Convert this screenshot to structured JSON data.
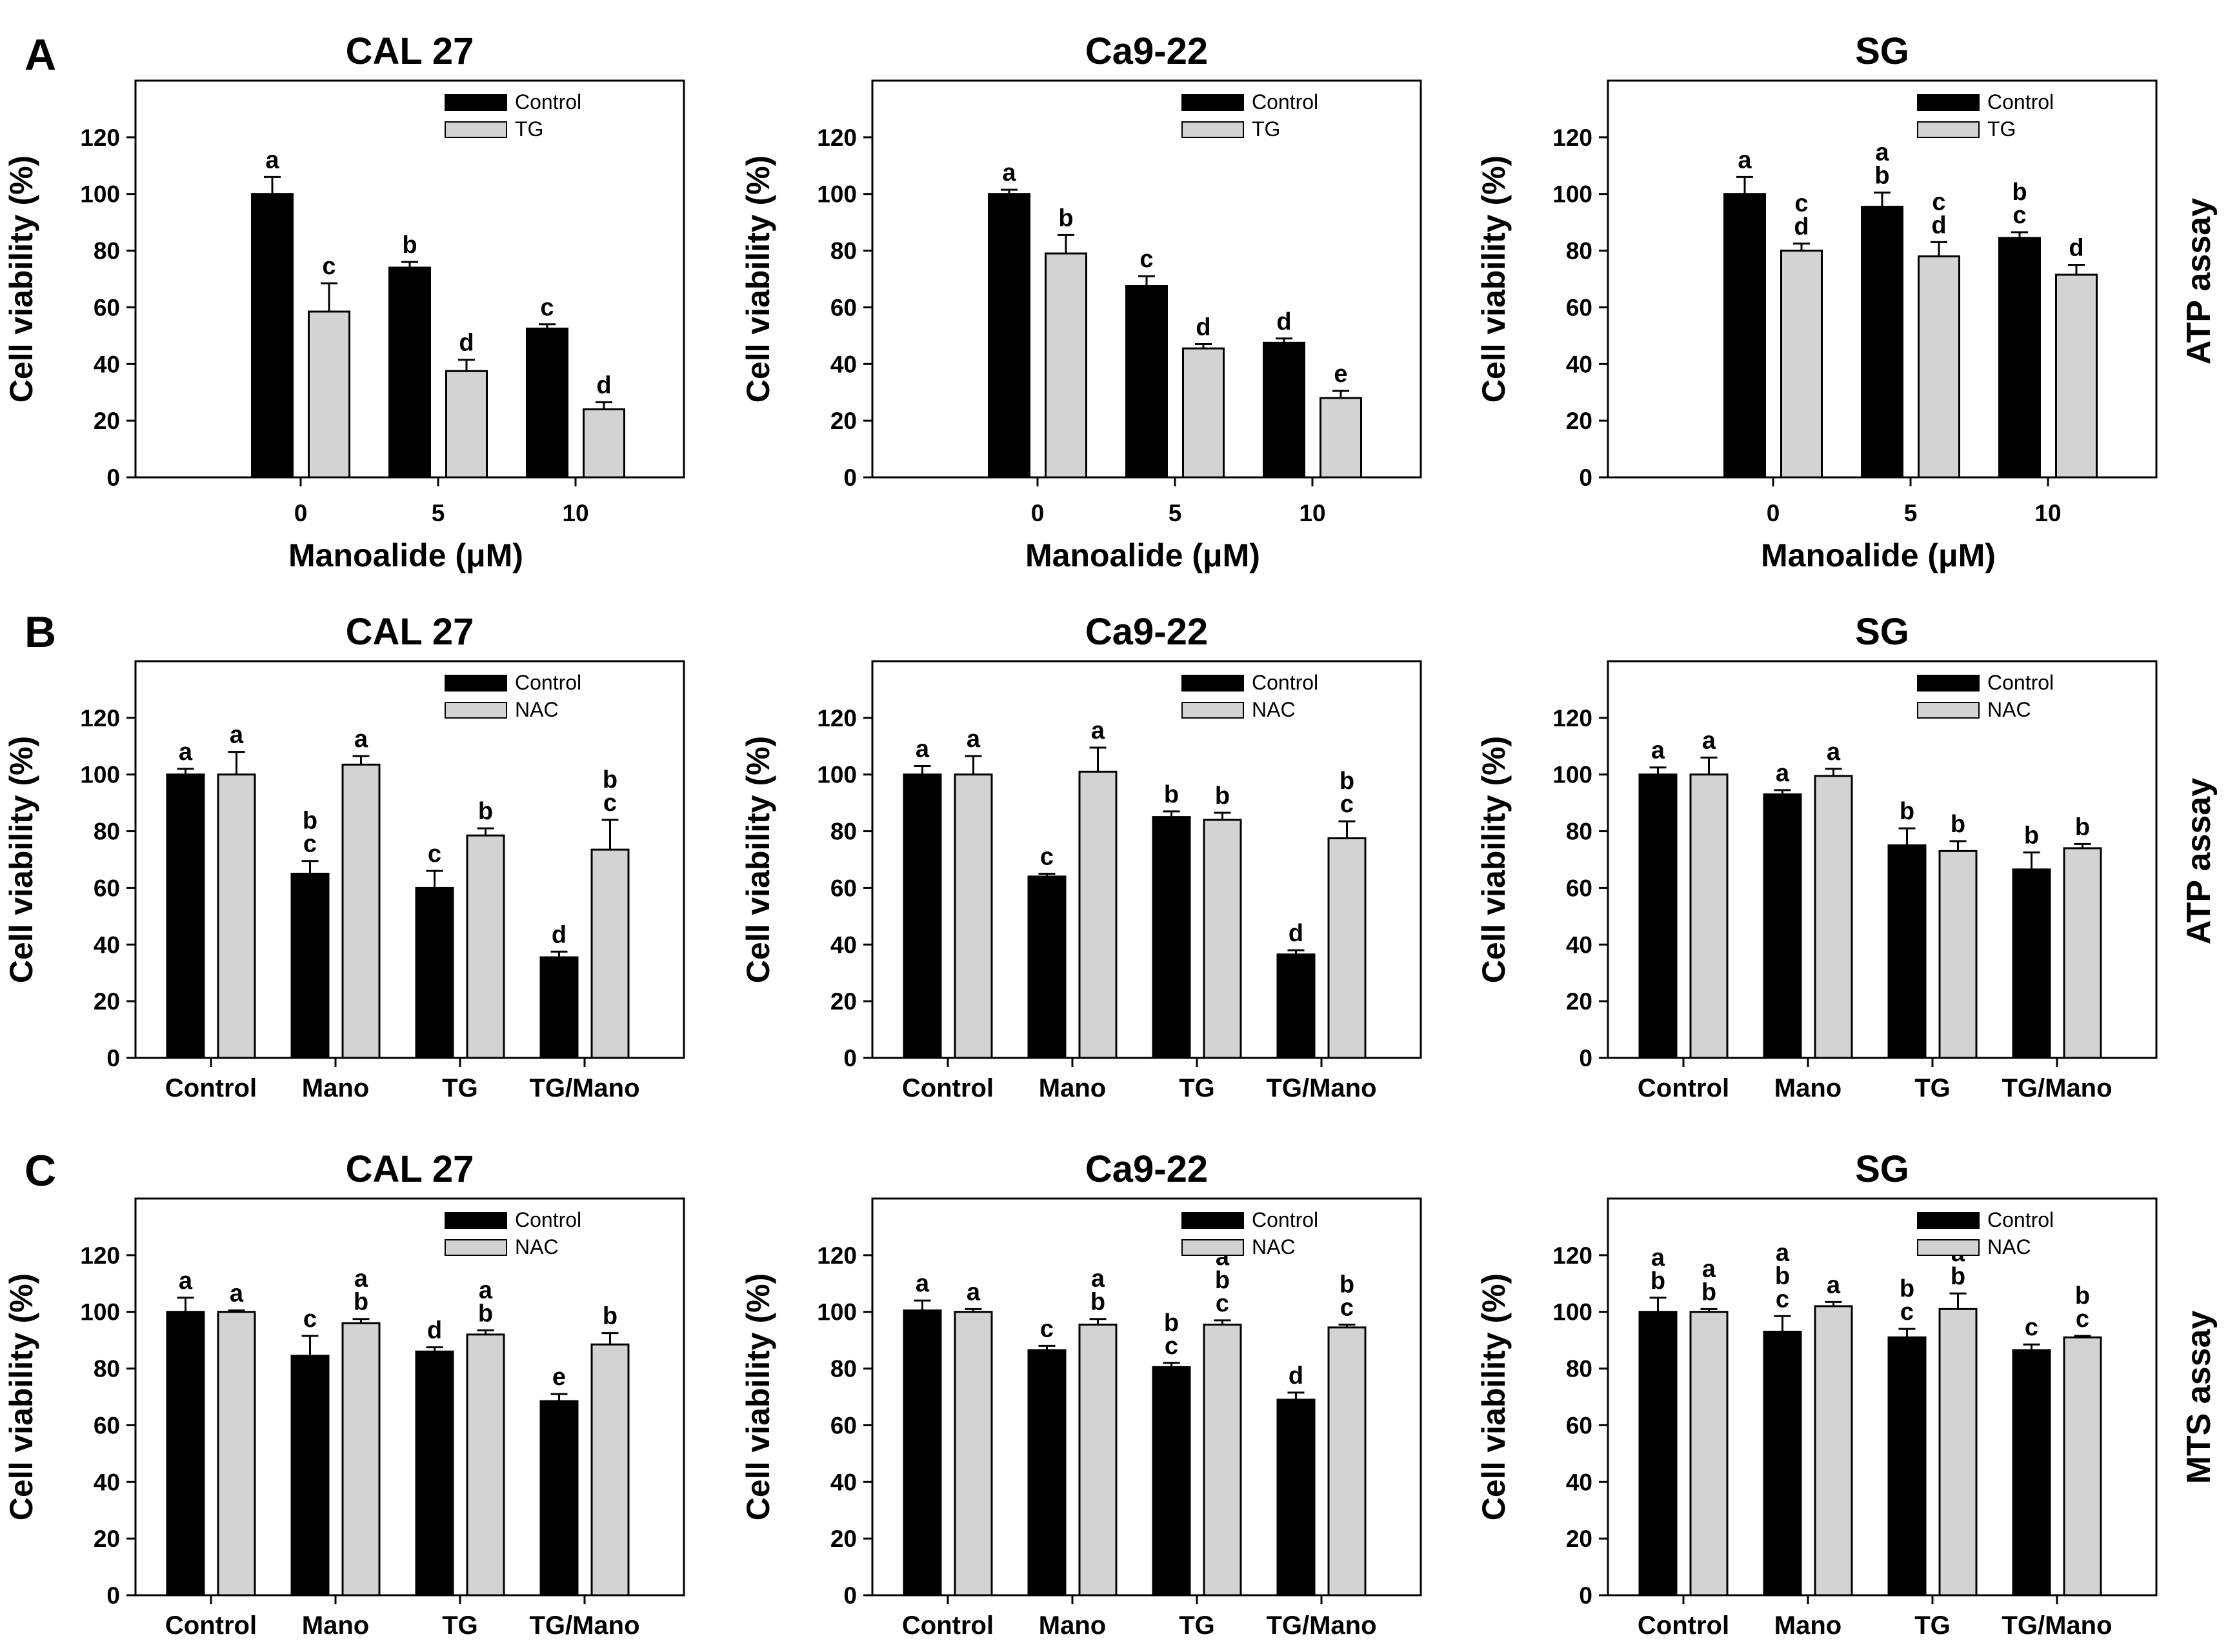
{
  "figure": {
    "panels": [
      {
        "letter": "A",
        "assay": "ATP assay"
      },
      {
        "letter": "B",
        "assay": "ATP assay"
      },
      {
        "letter": "C",
        "assay": "MTS assay"
      }
    ]
  },
  "colors": {
    "control": "#000000",
    "treat": "#d3d3d3",
    "axis": "#000000"
  },
  "chart_data": [
    {
      "panel": "A",
      "title": "CAL 27",
      "type": "bar",
      "xlabel": "Manoalide (μM)",
      "ylabel": "Cell viability (%)",
      "ylim": [
        0,
        140
      ],
      "yticks": [
        0,
        20,
        40,
        60,
        80,
        100,
        120
      ],
      "categories": [
        "0",
        "5",
        "10"
      ],
      "grid": false,
      "legend_position": "top-right",
      "series": [
        {
          "name": "Control",
          "values": [
            100,
            74,
            52.5
          ],
          "errors": [
            6,
            2,
            1.5
          ],
          "letters": [
            "a",
            "b",
            "c"
          ]
        },
        {
          "name": "TG",
          "values": [
            58.5,
            37.5,
            24
          ],
          "errors": [
            10,
            4,
            2.5
          ],
          "letters": [
            "c",
            "d",
            "d"
          ]
        }
      ]
    },
    {
      "panel": "A",
      "title": "Ca9-22",
      "type": "bar",
      "xlabel": "Manoalide (μM)",
      "ylabel": "Cell viability (%)",
      "ylim": [
        0,
        140
      ],
      "yticks": [
        0,
        20,
        40,
        60,
        80,
        100,
        120
      ],
      "categories": [
        "0",
        "5",
        "10"
      ],
      "grid": false,
      "legend_position": "top-right",
      "series": [
        {
          "name": "Control",
          "values": [
            100,
            67.5,
            47.5
          ],
          "errors": [
            1.5,
            3.5,
            1.5
          ],
          "letters": [
            "a",
            "c",
            "d"
          ]
        },
        {
          "name": "TG",
          "values": [
            79,
            45.5,
            28
          ],
          "errors": [
            6.5,
            1.5,
            2.5
          ],
          "letters": [
            "b",
            "d",
            "e"
          ]
        }
      ]
    },
    {
      "panel": "A",
      "title": "SG",
      "type": "bar",
      "xlabel": "Manoalide (μM)",
      "ylabel": "Cell viability (%)",
      "ylim": [
        0,
        140
      ],
      "yticks": [
        0,
        20,
        40,
        60,
        80,
        100,
        120
      ],
      "categories": [
        "0",
        "5",
        "10"
      ],
      "grid": false,
      "legend_position": "top-right",
      "series": [
        {
          "name": "Control",
          "values": [
            100,
            95.5,
            84.5
          ],
          "errors": [
            6,
            5,
            2
          ],
          "letters": [
            "a",
            "a\nb",
            "b\nc"
          ]
        },
        {
          "name": "TG",
          "values": [
            80,
            78,
            71.5
          ],
          "errors": [
            2.5,
            5,
            3.5
          ],
          "letters": [
            "c\nd",
            "c\nd",
            "d"
          ]
        }
      ]
    },
    {
      "panel": "B",
      "title": "CAL 27",
      "type": "bar",
      "xlabel": "",
      "ylabel": "Cell viability (%)",
      "ylim": [
        0,
        140
      ],
      "yticks": [
        0,
        20,
        40,
        60,
        80,
        100,
        120
      ],
      "categories": [
        "Control",
        "Mano",
        "TG",
        "TG/Mano"
      ],
      "grid": false,
      "legend_position": "top-right",
      "series": [
        {
          "name": "Control",
          "values": [
            100,
            65,
            60,
            35.5
          ],
          "errors": [
            2,
            4.5,
            6,
            2
          ],
          "letters": [
            "a",
            "b\nc",
            "c",
            "d"
          ]
        },
        {
          "name": "NAC",
          "values": [
            100,
            103.5,
            78.5,
            73.5
          ],
          "errors": [
            8,
            3,
            2.5,
            10.5
          ],
          "letters": [
            "a",
            "a",
            "b",
            "b\nc"
          ]
        }
      ]
    },
    {
      "panel": "B",
      "title": "Ca9-22",
      "type": "bar",
      "xlabel": "",
      "ylabel": "Cell viability (%)",
      "ylim": [
        0,
        140
      ],
      "yticks": [
        0,
        20,
        40,
        60,
        80,
        100,
        120
      ],
      "categories": [
        "Control",
        "Mano",
        "TG",
        "TG/Mano"
      ],
      "grid": false,
      "legend_position": "top-right",
      "series": [
        {
          "name": "Control",
          "values": [
            100,
            64,
            85,
            36.5
          ],
          "errors": [
            3,
            1,
            2,
            1.5
          ],
          "letters": [
            "a",
            "c",
            "b",
            "d"
          ]
        },
        {
          "name": "NAC",
          "values": [
            100,
            101,
            84,
            77.5
          ],
          "errors": [
            6.5,
            8.5,
            2.5,
            6
          ],
          "letters": [
            "a",
            "a",
            "b",
            "b\nc"
          ]
        }
      ]
    },
    {
      "panel": "B",
      "title": "SG",
      "type": "bar",
      "xlabel": "",
      "ylabel": "Cell viability (%)",
      "ylim": [
        0,
        140
      ],
      "yticks": [
        0,
        20,
        40,
        60,
        80,
        100,
        120
      ],
      "categories": [
        "Control",
        "Mano",
        "TG",
        "TG/Mano"
      ],
      "grid": false,
      "legend_position": "top-right",
      "series": [
        {
          "name": "Control",
          "values": [
            100,
            93,
            75,
            66.5
          ],
          "errors": [
            2.5,
            1.5,
            6,
            6
          ],
          "letters": [
            "a",
            "a",
            "b",
            "b"
          ]
        },
        {
          "name": "NAC",
          "values": [
            100,
            99.5,
            73,
            74
          ],
          "errors": [
            6,
            2.5,
            3.5,
            1.5
          ],
          "letters": [
            "a",
            "a",
            "b",
            "b"
          ]
        }
      ]
    },
    {
      "panel": "C",
      "title": "CAL 27",
      "type": "bar",
      "xlabel": "",
      "ylabel": "Cell viability (%)",
      "ylim": [
        0,
        140
      ],
      "yticks": [
        0,
        20,
        40,
        60,
        80,
        100,
        120
      ],
      "categories": [
        "Control",
        "Mano",
        "TG",
        "TG/Mano"
      ],
      "grid": false,
      "legend_position": "top-right",
      "series": [
        {
          "name": "Control",
          "values": [
            100,
            84.5,
            86,
            68.5
          ],
          "errors": [
            5,
            7,
            1.5,
            2.5
          ],
          "letters": [
            "a",
            "c",
            "d",
            "e"
          ]
        },
        {
          "name": "NAC",
          "values": [
            100,
            96,
            92,
            88.5
          ],
          "errors": [
            0.5,
            1.5,
            1.5,
            4
          ],
          "letters": [
            "a",
            "a\nb",
            "a\nb",
            "b"
          ]
        }
      ]
    },
    {
      "panel": "C",
      "title": "Ca9-22",
      "type": "bar",
      "xlabel": "",
      "ylabel": "Cell viability (%)",
      "ylim": [
        0,
        140
      ],
      "yticks": [
        0,
        20,
        40,
        60,
        80,
        100,
        120
      ],
      "categories": [
        "Control",
        "Mano",
        "TG",
        "TG/Mano"
      ],
      "grid": false,
      "legend_position": "top-right",
      "series": [
        {
          "name": "Control",
          "values": [
            100.5,
            86.5,
            80.5,
            69
          ],
          "errors": [
            3.5,
            1.5,
            1.5,
            2.5
          ],
          "letters": [
            "a",
            "c",
            "b\nc",
            "d"
          ]
        },
        {
          "name": "NAC",
          "values": [
            100,
            95.5,
            95.5,
            94.5
          ],
          "errors": [
            1,
            2,
            1.5,
            1
          ],
          "letters": [
            "a",
            "a\nb",
            "a\nb\nc",
            "b\nc"
          ]
        }
      ]
    },
    {
      "panel": "C",
      "title": "SG",
      "type": "bar",
      "xlabel": "",
      "ylabel": "Cell viability (%)",
      "ylim": [
        0,
        140
      ],
      "yticks": [
        0,
        20,
        40,
        60,
        80,
        100,
        120
      ],
      "categories": [
        "Control",
        "Mano",
        "TG",
        "TG/Mano"
      ],
      "grid": false,
      "legend_position": "top-right",
      "series": [
        {
          "name": "Control",
          "values": [
            100,
            93,
            91,
            86.5
          ],
          "errors": [
            5,
            5.5,
            3,
            2
          ],
          "letters": [
            "a\nb",
            "a\nb\nc",
            "b\nc",
            "c"
          ]
        },
        {
          "name": "NAC",
          "values": [
            100,
            102,
            101,
            91
          ],
          "errors": [
            1,
            1.5,
            5.5,
            0.5
          ],
          "letters": [
            "a\nb",
            "a",
            "a\nb",
            "b\nc"
          ]
        }
      ]
    }
  ]
}
